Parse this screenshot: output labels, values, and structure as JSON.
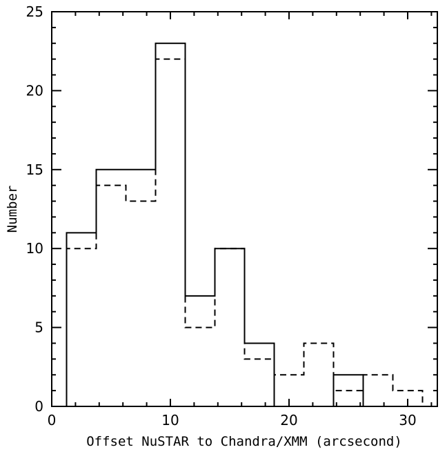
{
  "chart_data": {
    "type": "histogram",
    "title": "",
    "xlabel": "Offset NuSTAR to Chandra/XMM (arcsecond)",
    "ylabel": "Number",
    "xlim": [
      0,
      32.5
    ],
    "ylim": [
      0,
      25
    ],
    "x_ticks_major": [
      0,
      10,
      20,
      30
    ],
    "y_ticks_major": [
      0,
      5,
      10,
      15,
      20,
      25
    ],
    "x_minor_step": 2,
    "y_minor_step": 1,
    "bin_edges": [
      1.25,
      3.75,
      6.25,
      8.75,
      11.25,
      13.75,
      16.25,
      18.75,
      21.25,
      23.75,
      26.25,
      28.75,
      31.25
    ],
    "series": [
      {
        "style": "solid",
        "values": [
          11,
          15,
          15,
          23,
          7,
          10,
          4,
          0,
          0,
          2,
          0,
          0
        ]
      },
      {
        "style": "dashed",
        "values": [
          10,
          14,
          13,
          22,
          5,
          10,
          3,
          2,
          4,
          1,
          2,
          1
        ]
      }
    ],
    "grid": false,
    "legend": "none"
  }
}
